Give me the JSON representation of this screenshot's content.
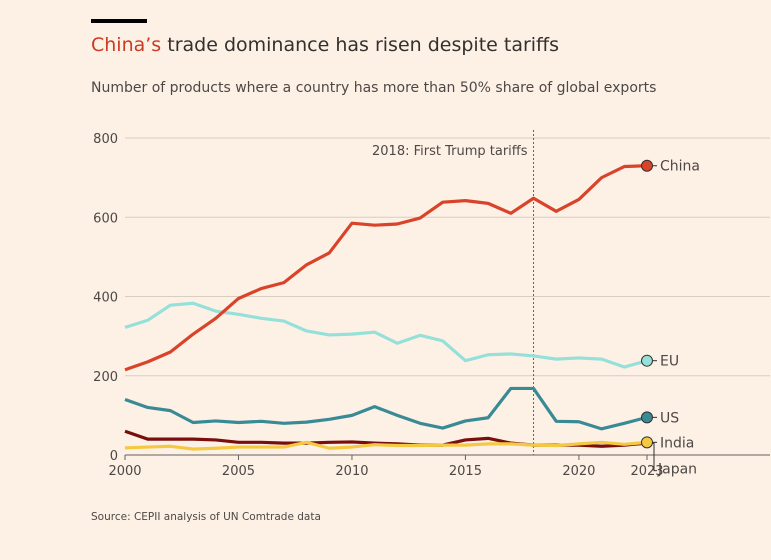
{
  "title": {
    "highlight": "China’s",
    "rest": " trade dominance has risen despite tariffs"
  },
  "subtitle": "Number of products where a country has more than 50% share of global exports",
  "source": "Source: CEPII analysis of UN Comtrade data",
  "chart_data": {
    "type": "line",
    "x": [
      2000,
      2001,
      2002,
      2003,
      2004,
      2005,
      2006,
      2007,
      2008,
      2009,
      2010,
      2011,
      2012,
      2013,
      2014,
      2015,
      2016,
      2017,
      2018,
      2019,
      2020,
      2021,
      2022,
      2023
    ],
    "xticks": [
      "2000",
      "2005",
      "2010",
      "2015",
      "2020",
      "2023"
    ],
    "yticks": [
      "0",
      "200",
      "400",
      "600",
      "800"
    ],
    "ylim": [
      0,
      800
    ],
    "xlim": [
      2000,
      2023
    ],
    "grid": true,
    "annotation": {
      "x": 2018,
      "label": "2018: First Trump tariffs"
    },
    "series": [
      {
        "name": "EU",
        "color": "#96e0da",
        "values": [
          322,
          340,
          378,
          383,
          363,
          355,
          345,
          338,
          313,
          303,
          305,
          310,
          282,
          302,
          288,
          238,
          253,
          255,
          250,
          242,
          245,
          242,
          222,
          238
        ]
      },
      {
        "name": "US",
        "color": "#3a8a96",
        "values": [
          140,
          120,
          112,
          82,
          86,
          82,
          85,
          80,
          83,
          90,
          100,
          122,
          100,
          80,
          68,
          86,
          94,
          168,
          168,
          85,
          84,
          66,
          80,
          95
        ]
      },
      {
        "name": "Japan",
        "color": "#7a0e0e",
        "values": [
          60,
          40,
          40,
          40,
          38,
          32,
          32,
          30,
          30,
          32,
          33,
          30,
          28,
          25,
          25,
          38,
          42,
          30,
          25,
          25,
          25,
          22,
          25,
          30
        ]
      },
      {
        "name": "India",
        "color": "#f5c842",
        "values": [
          18,
          20,
          22,
          15,
          17,
          20,
          20,
          20,
          32,
          17,
          20,
          26,
          24,
          24,
          25,
          25,
          28,
          28,
          25,
          24,
          28,
          32,
          27,
          32
        ]
      },
      {
        "name": "China",
        "color": "#d9432a",
        "values": [
          215,
          235,
          260,
          305,
          345,
          395,
          420,
          435,
          480,
          510,
          585,
          580,
          583,
          598,
          638,
          642,
          635,
          610,
          648,
          615,
          645,
          700,
          728,
          730
        ]
      }
    ]
  }
}
